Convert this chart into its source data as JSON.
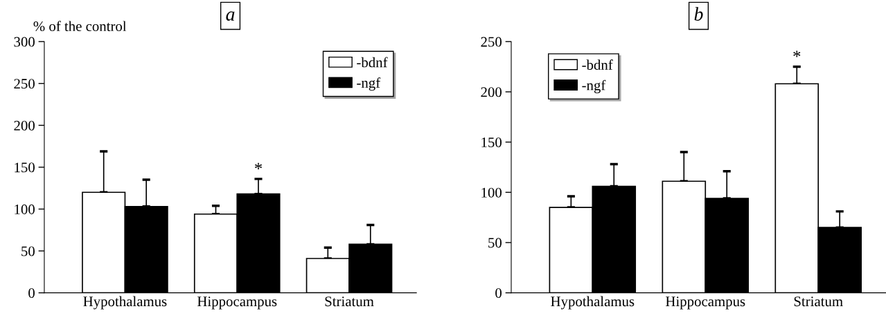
{
  "chart_data": [
    {
      "type": "bar",
      "title": "a",
      "ylabel": "% of the control",
      "categories": [
        "Hypothalamus",
        "Hippocampus",
        "Striatum"
      ],
      "series": [
        {
          "name": "-bdnf",
          "color": "#ffffff",
          "values": [
            120,
            94,
            41
          ],
          "errors": [
            [
              120,
              169
            ],
            [
              94,
              104
            ],
            [
              41,
              54
            ]
          ]
        },
        {
          "name": "-ngf",
          "color": "#000000",
          "values": [
            103,
            118,
            58
          ],
          "errors": [
            [
              103,
              135
            ],
            [
              118,
              136
            ],
            [
              58,
              81
            ]
          ],
          "value_labels": [
            null,
            "*",
            null
          ]
        }
      ],
      "ylim": [
        0,
        300
      ],
      "yticks": [
        0,
        50,
        100,
        150,
        200,
        250,
        300
      ],
      "legend": "top right",
      "grid": false
    },
    {
      "type": "bar",
      "title": "b",
      "categories": [
        "Hypothalamus",
        "Hippocampus",
        "Striatum"
      ],
      "series": [
        {
          "name": "-bdnf",
          "color": "#ffffff",
          "values": [
            85,
            111,
            208
          ],
          "errors": [
            [
              85,
              96
            ],
            [
              111,
              140
            ],
            [
              208,
              225
            ]
          ],
          "value_labels": [
            null,
            null,
            "*"
          ]
        },
        {
          "name": "-ngf",
          "color": "#000000",
          "values": [
            106,
            94,
            65
          ],
          "errors": [
            [
              106,
              128
            ],
            [
              94,
              121
            ],
            [
              65,
              81
            ]
          ]
        }
      ],
      "ylim": [
        0,
        250
      ],
      "yticks": [
        0,
        50,
        100,
        150,
        200,
        250
      ],
      "legend": "top left",
      "grid": false
    }
  ]
}
